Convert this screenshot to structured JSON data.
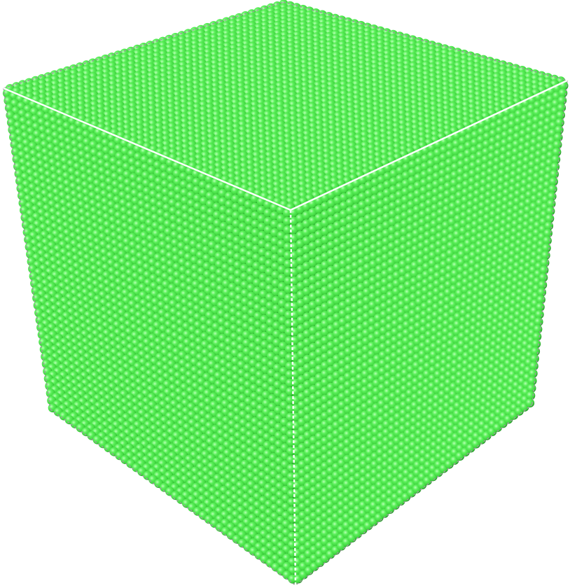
{
  "scene": {
    "subject": "atom-lattice-cube",
    "colors": {
      "background": "#ffffff",
      "atom_highlight": "#b8ffb5",
      "atom_mid": "#5bf05a",
      "atom_base": "#3fd43e",
      "atom_shadow": "#1e8a22",
      "edge_front": "#ffffff",
      "edge_back": "#9a9a9a"
    }
  }
}
